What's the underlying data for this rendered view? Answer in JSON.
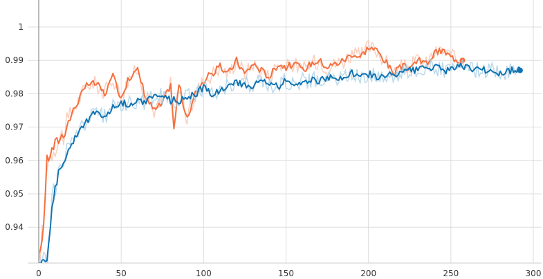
{
  "chart_data": {
    "type": "line",
    "grid": true,
    "legend": "none",
    "xlim": [
      0,
      300
    ],
    "ylim": [
      0.93,
      1.0
    ],
    "x_ticks": [
      0,
      50,
      100,
      150,
      200,
      250,
      300
    ],
    "x_tick_labels": [
      "0",
      "50",
      "100",
      "150",
      "200",
      "250",
      "300"
    ],
    "y_ticks": [
      0.94,
      0.95,
      0.96,
      0.97,
      0.98,
      0.99,
      1.0
    ],
    "y_tick_labels": [
      "0.94",
      "0.95",
      "0.96",
      "0.97",
      "0.98",
      "0.99",
      "1"
    ],
    "colors": {
      "series_a": "#f4703f",
      "series_a_raw": "#f9c2ad",
      "series_b": "#0f73b2",
      "series_b_raw": "#a9cfe6"
    },
    "series": [
      {
        "key": "orange",
        "color": "#f4703f",
        "x": [
          0,
          3,
          5,
          10,
          15,
          20,
          25,
          30,
          35,
          40,
          45,
          50,
          55,
          60,
          65,
          70,
          75,
          80,
          82,
          85,
          90,
          95,
          100,
          105,
          110,
          115,
          120,
          125,
          130,
          135,
          140,
          145,
          150,
          155,
          160,
          165,
          170,
          175,
          180,
          185,
          190,
          195,
          200,
          205,
          210,
          215,
          220,
          225,
          230,
          235,
          240,
          245,
          250,
          255,
          257
        ],
        "y": [
          0.93,
          0.941,
          0.96,
          0.965,
          0.968,
          0.974,
          0.979,
          0.983,
          0.983,
          0.98,
          0.985,
          0.979,
          0.985,
          0.987,
          0.979,
          0.975,
          0.977,
          0.983,
          0.969,
          0.983,
          0.972,
          0.98,
          0.984,
          0.986,
          0.988,
          0.986,
          0.99,
          0.986,
          0.989,
          0.987,
          0.985,
          0.989,
          0.988,
          0.989,
          0.987,
          0.989,
          0.99,
          0.988,
          0.989,
          0.99,
          0.992,
          0.991,
          0.994,
          0.993,
          0.99,
          0.986,
          0.988,
          0.988,
          0.99,
          0.989,
          0.992,
          0.993,
          0.991,
          0.99,
          0.99
        ]
      },
      {
        "key": "blue",
        "color": "#0f73b2",
        "x": [
          0,
          5,
          8,
          10,
          15,
          20,
          25,
          30,
          35,
          40,
          45,
          50,
          55,
          60,
          65,
          70,
          75,
          80,
          85,
          90,
          95,
          100,
          105,
          110,
          115,
          120,
          125,
          130,
          135,
          140,
          145,
          150,
          155,
          160,
          165,
          170,
          175,
          180,
          185,
          190,
          195,
          200,
          205,
          210,
          215,
          220,
          225,
          230,
          235,
          240,
          245,
          250,
          255,
          260,
          265,
          270,
          275,
          280,
          285,
          290,
          292
        ],
        "y": [
          0.93,
          0.93,
          0.947,
          0.953,
          0.96,
          0.965,
          0.97,
          0.972,
          0.975,
          0.973,
          0.976,
          0.977,
          0.977,
          0.978,
          0.977,
          0.98,
          0.979,
          0.978,
          0.978,
          0.979,
          0.98,
          0.982,
          0.98,
          0.981,
          0.983,
          0.983,
          0.983,
          0.982,
          0.984,
          0.983,
          0.982,
          0.984,
          0.983,
          0.984,
          0.984,
          0.984,
          0.985,
          0.984,
          0.985,
          0.986,
          0.985,
          0.986,
          0.985,
          0.985,
          0.986,
          0.986,
          0.987,
          0.987,
          0.988,
          0.988,
          0.987,
          0.987,
          0.988,
          0.988,
          0.987,
          0.987,
          0.987,
          0.986,
          0.987,
          0.987,
          0.987
        ]
      }
    ]
  }
}
